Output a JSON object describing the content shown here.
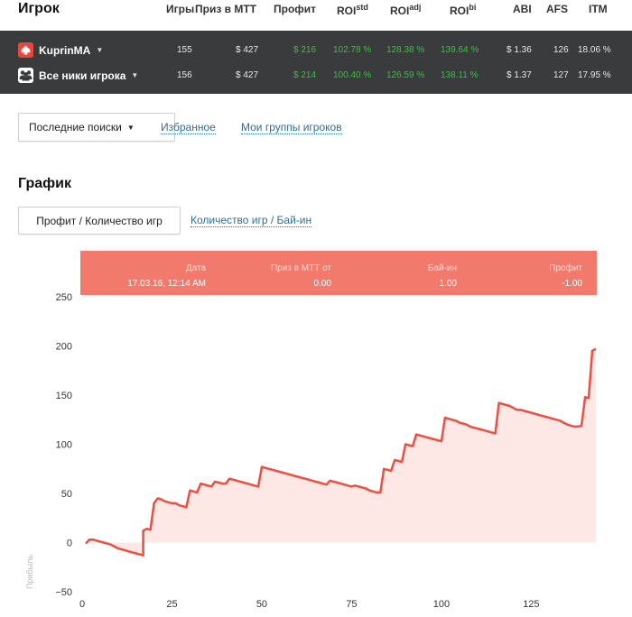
{
  "header": {
    "title": "Игрок",
    "columns": {
      "games": "Игры",
      "prize": "Приз в МТТ",
      "profit": "Профит",
      "roi_std": "ROI",
      "roi_std_sup": "std",
      "roi_adj": "ROI",
      "roi_adj_sup": "adj",
      "roi_bi": "ROI",
      "roi_bi_sup": "bi",
      "abi": "ABI",
      "afs": "AFS",
      "itm": "ITM"
    }
  },
  "stats_rows": [
    {
      "icon": "pokerstars-spade-icon",
      "nick": "KuprinMA",
      "games": "155",
      "prize": "$ 427",
      "profit": "$ 216",
      "roi_std": "102.78 %",
      "roi_adj": "128.38 %",
      "roi_bi": "139.64 %",
      "abi": "$ 1.36",
      "afs": "126",
      "itm": "18.06 %"
    },
    {
      "icon": "group-users-icon",
      "nick": "Все ники игрока",
      "games": "156",
      "prize": "$ 427",
      "profit": "$ 214",
      "roi_std": "100.40 %",
      "roi_adj": "126.59 %",
      "roi_bi": "138.11 %",
      "abi": "$ 1.37",
      "afs": "127",
      "itm": "17.95 %"
    }
  ],
  "colors": {
    "panel_bg": "#3a3b3d",
    "positive_green": "#38c13c",
    "link_blue": "#2d6f9a",
    "line_red": "#ef4d3f",
    "fill_pink": "#fde8e6",
    "tooltip_bg": "#f17a6d"
  },
  "nav": {
    "recent_searches": "Последние поиски",
    "favorites": "Избранное",
    "my_groups": "Мои группы игроков"
  },
  "graph": {
    "section_title": "График",
    "tab_active": "Профит / Количество игр",
    "tab_other": "Количество игр / Бай-ин"
  },
  "tooltip": {
    "labels": {
      "date": "Дата",
      "prize": "Приз в МТТ от",
      "buyin": "Бай-ин",
      "profit": "Профит"
    },
    "values": {
      "date": "17.03.16, 12:14 AM",
      "prize": "0.00",
      "buyin": "1.00",
      "profit": "-1.00"
    }
  },
  "chart_data": {
    "type": "area",
    "xlabel": "",
    "ylabel": "Прибыль",
    "xlim": [
      0,
      143
    ],
    "ylim": [
      -50,
      250
    ],
    "x_ticks": [
      0,
      25,
      50,
      75,
      100,
      125
    ],
    "y_ticks": [
      -50,
      0,
      50,
      100,
      150,
      200,
      250
    ],
    "grid": false,
    "series": [
      {
        "points": [
          [
            1,
            -1
          ],
          [
            2,
            3
          ],
          [
            3,
            3
          ],
          [
            4,
            2
          ],
          [
            5,
            1
          ],
          [
            6,
            0
          ],
          [
            7,
            -1
          ],
          [
            8,
            -2
          ],
          [
            9,
            -4
          ],
          [
            10,
            -6
          ],
          [
            11,
            -7
          ],
          [
            12,
            -8
          ],
          [
            13,
            -9
          ],
          [
            14,
            -10
          ],
          [
            15,
            -11
          ],
          [
            16,
            -12
          ],
          [
            17,
            -13
          ],
          [
            17,
            12
          ],
          [
            18,
            14
          ],
          [
            19,
            13
          ],
          [
            20,
            40
          ],
          [
            21,
            45
          ],
          [
            22,
            44
          ],
          [
            23,
            42
          ],
          [
            24,
            41
          ],
          [
            25,
            40
          ],
          [
            26,
            40
          ],
          [
            27,
            38
          ],
          [
            28,
            37
          ],
          [
            29,
            36
          ],
          [
            30,
            53
          ],
          [
            31,
            52
          ],
          [
            32,
            51
          ],
          [
            33,
            60
          ],
          [
            34,
            59
          ],
          [
            35,
            58
          ],
          [
            36,
            57
          ],
          [
            37,
            62
          ],
          [
            38,
            61
          ],
          [
            39,
            60
          ],
          [
            40,
            60
          ],
          [
            41,
            65
          ],
          [
            42,
            64
          ],
          [
            43,
            63
          ],
          [
            44,
            62
          ],
          [
            45,
            61
          ],
          [
            46,
            60
          ],
          [
            47,
            59
          ],
          [
            48,
            58
          ],
          [
            49,
            57
          ],
          [
            50,
            77
          ],
          [
            51,
            76
          ],
          [
            52,
            75
          ],
          [
            53,
            74
          ],
          [
            54,
            73
          ],
          [
            55,
            72
          ],
          [
            56,
            71
          ],
          [
            57,
            70
          ],
          [
            58,
            69
          ],
          [
            59,
            68
          ],
          [
            60,
            67
          ],
          [
            61,
            66
          ],
          [
            62,
            65
          ],
          [
            63,
            64
          ],
          [
            64,
            63
          ],
          [
            65,
            62
          ],
          [
            66,
            61
          ],
          [
            67,
            60
          ],
          [
            68,
            59
          ],
          [
            69,
            63
          ],
          [
            70,
            62
          ],
          [
            71,
            61
          ],
          [
            72,
            60
          ],
          [
            73,
            59
          ],
          [
            74,
            58
          ],
          [
            75,
            57
          ],
          [
            76,
            58
          ],
          [
            77,
            57
          ],
          [
            78,
            56
          ],
          [
            79,
            55
          ],
          [
            80,
            53
          ],
          [
            81,
            52
          ],
          [
            82,
            51
          ],
          [
            83,
            51
          ],
          [
            84,
            75
          ],
          [
            85,
            74
          ],
          [
            86,
            73
          ],
          [
            87,
            84
          ],
          [
            88,
            83
          ],
          [
            89,
            82
          ],
          [
            90,
            100
          ],
          [
            91,
            99
          ],
          [
            92,
            98
          ],
          [
            93,
            110
          ],
          [
            94,
            109
          ],
          [
            95,
            108
          ],
          [
            96,
            107
          ],
          [
            97,
            106
          ],
          [
            98,
            105
          ],
          [
            99,
            104
          ],
          [
            100,
            103
          ],
          [
            101,
            127
          ],
          [
            102,
            126
          ],
          [
            103,
            125
          ],
          [
            104,
            124
          ],
          [
            105,
            122
          ],
          [
            106,
            121
          ],
          [
            107,
            120
          ],
          [
            108,
            118
          ],
          [
            109,
            117
          ],
          [
            110,
            116
          ],
          [
            111,
            115
          ],
          [
            112,
            114
          ],
          [
            113,
            113
          ],
          [
            114,
            112
          ],
          [
            115,
            111
          ],
          [
            116,
            142
          ],
          [
            117,
            141
          ],
          [
            118,
            140
          ],
          [
            119,
            139
          ],
          [
            120,
            137
          ],
          [
            121,
            135
          ],
          [
            122,
            135
          ],
          [
            123,
            134
          ],
          [
            124,
            133
          ],
          [
            125,
            132
          ],
          [
            126,
            131
          ],
          [
            127,
            130
          ],
          [
            128,
            129
          ],
          [
            129,
            128
          ],
          [
            130,
            127
          ],
          [
            131,
            126
          ],
          [
            132,
            125
          ],
          [
            133,
            124
          ],
          [
            134,
            122
          ],
          [
            135,
            120
          ],
          [
            136,
            119
          ],
          [
            137,
            118
          ],
          [
            138,
            118
          ],
          [
            139,
            119
          ],
          [
            140,
            148
          ],
          [
            141,
            147
          ],
          [
            142,
            195
          ],
          [
            143,
            197
          ]
        ]
      }
    ]
  }
}
